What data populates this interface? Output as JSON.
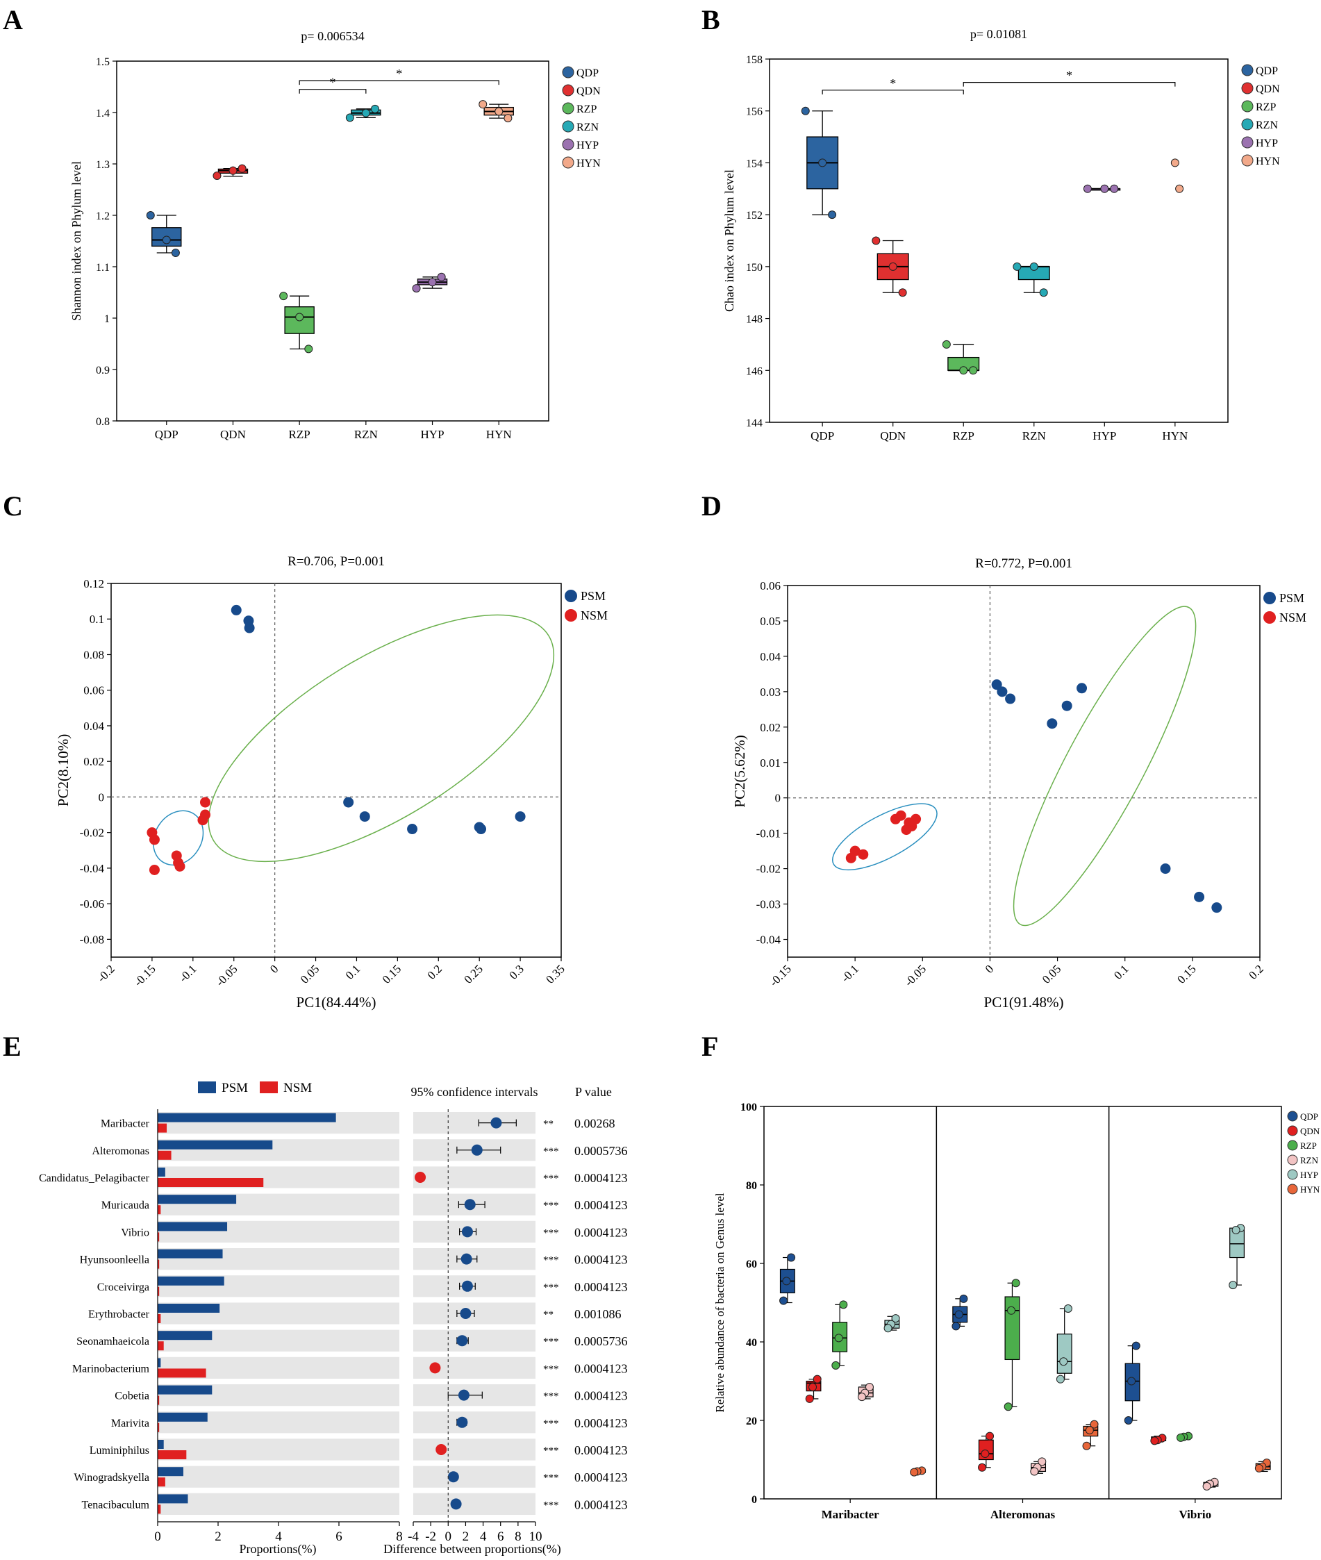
{
  "figure": {
    "panel_labels": [
      "A",
      "B",
      "C",
      "D",
      "E",
      "F"
    ]
  },
  "colors": {
    "QDP": "#2c64a0",
    "QDN": "#e03030",
    "RZP": "#5cb85c",
    "RZN": "#26a9b5",
    "HYP": "#9b72b0",
    "HYN": "#f2a98a",
    "PSM": "#174a8b",
    "NSM": "#e02020",
    "ellipse": "#6ab04c",
    "F_QDP": "#1d4f91",
    "F_QDN": "#e02020",
    "F_RZP": "#4cae4c",
    "F_RZN": "#f2c4c4",
    "F_HYP": "#9ec9c3",
    "F_HYN": "#e8663a",
    "E_bg": "#e6e6e6"
  },
  "chart_data": [
    {
      "id": "A",
      "type": "box",
      "title": "p= 0.006534",
      "ylabel": "Shannon index on Phylum level",
      "ylim": [
        0.8,
        1.5
      ],
      "yticks": [
        0.8,
        0.9,
        1,
        1.1,
        1.2,
        1.3,
        1.4,
        1.5
      ],
      "ytick_labels": [
        "0.8",
        "0.9",
        "1",
        "1.1",
        "1.2",
        "1.3",
        "1.4",
        "1.5"
      ],
      "categories": [
        "QDP",
        "QDN",
        "RZP",
        "RZN",
        "HYP",
        "HYN"
      ],
      "legend": [
        "QDP",
        "QDN",
        "RZP",
        "RZN",
        "HYP",
        "HYN"
      ],
      "boxes": [
        {
          "q1": 1.14,
          "median": 1.152,
          "q3": 1.176,
          "lo": 1.127,
          "hi": 1.2,
          "points": [
            1.2,
            1.152,
            1.127
          ]
        },
        {
          "q1": 1.282,
          "median": 1.287,
          "q3": 1.29,
          "lo": 1.276,
          "hi": 1.291,
          "points": [
            1.277,
            1.287,
            1.291
          ]
        },
        {
          "q1": 0.97,
          "median": 1.002,
          "q3": 1.022,
          "lo": 0.94,
          "hi": 1.043,
          "points": [
            1.043,
            1.002,
            0.94
          ]
        },
        {
          "q1": 1.395,
          "median": 1.399,
          "q3": 1.405,
          "lo": 1.39,
          "hi": 1.407,
          "points": [
            1.39,
            1.399,
            1.407
          ]
        },
        {
          "q1": 1.065,
          "median": 1.07,
          "q3": 1.076,
          "lo": 1.058,
          "hi": 1.08,
          "points": [
            1.058,
            1.07,
            1.08
          ]
        },
        {
          "q1": 1.395,
          "median": 1.402,
          "q3": 1.41,
          "lo": 1.389,
          "hi": 1.416,
          "points": [
            1.416,
            1.402,
            1.389
          ]
        }
      ],
      "sig_brackets": [
        {
          "from": 2,
          "to": 3,
          "y": 1.445,
          "label": "*"
        },
        {
          "from": 2,
          "to": 5,
          "y": 1.462,
          "label": "*"
        }
      ]
    },
    {
      "id": "B",
      "type": "box",
      "title": "p= 0.01081",
      "ylabel": "Chao index on Phylum level",
      "ylim": [
        144,
        158
      ],
      "yticks": [
        144,
        146,
        148,
        150,
        152,
        154,
        156,
        158
      ],
      "ytick_labels": [
        "144",
        "146",
        "148",
        "150",
        "152",
        "154",
        "156",
        "158"
      ],
      "categories": [
        "QDP",
        "QDN",
        "RZP",
        "RZN",
        "HYP",
        "HYN"
      ],
      "legend": [
        "QDP",
        "QDN",
        "RZP",
        "RZN",
        "HYP",
        "HYN"
      ],
      "boxes": [
        {
          "q1": 153,
          "median": 154,
          "q3": 155,
          "lo": 152,
          "hi": 156,
          "points": [
            156,
            154,
            152
          ]
        },
        {
          "q1": 149.5,
          "median": 150,
          "q3": 150.5,
          "lo": 149,
          "hi": 151,
          "points": [
            151,
            150,
            149
          ]
        },
        {
          "q1": 146,
          "median": 146,
          "q3": 146.5,
          "lo": 146,
          "hi": 147,
          "points": [
            147,
            146,
            146
          ]
        },
        {
          "q1": 149.5,
          "median": 150,
          "q3": 150,
          "lo": 149,
          "hi": 150,
          "points": [
            150,
            150,
            149
          ]
        },
        {
          "q1": 153,
          "median": 153,
          "q3": 153,
          "lo": 153,
          "hi": 153,
          "points": [
            153,
            153,
            153
          ]
        },
        {
          "q1": null,
          "median": null,
          "q3": null,
          "lo": null,
          "hi": null,
          "points": [
            154,
            153
          ]
        }
      ],
      "sig_brackets": [
        {
          "from": 0,
          "to": 2,
          "y": 156.8,
          "label": "*"
        },
        {
          "from": 2,
          "to": 5,
          "y": 157.1,
          "label": "*"
        }
      ]
    },
    {
      "id": "C",
      "type": "scatter",
      "title": "R=0.706, P=0.001",
      "xlabel": "PC1(84.44%)",
      "ylabel": "PC2(8.10%)",
      "xlim": [
        -0.2,
        0.35
      ],
      "ylim": [
        -0.09,
        0.12
      ],
      "xticks": [
        -0.2,
        -0.15,
        -0.1,
        -0.05,
        0,
        0.05,
        0.1,
        0.15,
        0.2,
        0.25,
        0.3,
        0.35
      ],
      "xtick_labels": [
        "-0.2",
        "-0.15",
        "-0.1",
        "-0.05",
        "0",
        "0.05",
        "0.1",
        "0.15",
        "0.2",
        "0.25",
        "0.3",
        "0.35"
      ],
      "yticks": [
        -0.08,
        -0.06,
        -0.04,
        -0.02,
        0,
        0.02,
        0.04,
        0.06,
        0.08,
        0.1,
        0.12
      ],
      "ytick_labels": [
        "-0.08",
        "-0.06",
        "-0.04",
        "-0.02",
        "0",
        "0.02",
        "0.04",
        "0.06",
        "0.08",
        "0.1",
        "0.12"
      ],
      "legend": [
        "PSM",
        "NSM"
      ],
      "series": [
        {
          "name": "PSM",
          "points": [
            [
              -0.047,
              0.105
            ],
            [
              -0.032,
              0.099
            ],
            [
              -0.031,
              0.095
            ],
            [
              0.09,
              -0.003
            ],
            [
              0.11,
              -0.011
            ],
            [
              0.168,
              -0.018
            ],
            [
              0.25,
              -0.017
            ],
            [
              0.252,
              -0.018
            ],
            [
              0.3,
              -0.011
            ]
          ]
        },
        {
          "name": "NSM",
          "points": [
            [
              -0.085,
              -0.003
            ],
            [
              -0.085,
              -0.01
            ],
            [
              -0.088,
              -0.013
            ],
            [
              -0.15,
              -0.02
            ],
            [
              -0.147,
              -0.024
            ],
            [
              -0.147,
              -0.041
            ],
            [
              -0.12,
              -0.033
            ],
            [
              -0.118,
              -0.037
            ],
            [
              -0.116,
              -0.039
            ]
          ]
        }
      ],
      "ellipses": [
        {
          "group": "PSM",
          "cx": 0.13,
          "cy": 0.033,
          "rx": 0.24,
          "ry": 0.045,
          "angle_deg": -31.5
        },
        {
          "group": "NSM",
          "cx": -0.118,
          "cy": -0.023,
          "rx": 0.035,
          "ry": 0.013,
          "angle_deg": -57
        }
      ]
    },
    {
      "id": "D",
      "type": "scatter",
      "title": "R=0.772, P=0.001",
      "xlabel": "PC1(91.48%)",
      "ylabel": "PC2(5.62%)",
      "xlim": [
        -0.15,
        0.2
      ],
      "ylim": [
        -0.045,
        0.06
      ],
      "xticks": [
        -0.15,
        -0.1,
        -0.05,
        0,
        0.05,
        0.1,
        0.15,
        0.2
      ],
      "xtick_labels": [
        "-0.15",
        "-0.1",
        "-0.05",
        "0",
        "0.05",
        "0.1",
        "0.15",
        "0.2"
      ],
      "yticks": [
        -0.04,
        -0.03,
        -0.02,
        -0.01,
        0,
        0.01,
        0.02,
        0.03,
        0.04,
        0.05,
        0.06
      ],
      "ytick_labels": [
        "-0.04",
        "-0.03",
        "-0.02",
        "-0.01",
        "0",
        "0.01",
        "0.02",
        "0.03",
        "0.04",
        "0.05",
        "0.06"
      ],
      "legend": [
        "PSM",
        "NSM"
      ],
      "series": [
        {
          "name": "PSM",
          "points": [
            [
              0.005,
              0.032
            ],
            [
              0.009,
              0.03
            ],
            [
              0.015,
              0.028
            ],
            [
              0.046,
              0.021
            ],
            [
              0.057,
              0.026
            ],
            [
              0.068,
              0.031
            ],
            [
              0.13,
              -0.02
            ],
            [
              0.155,
              -0.028
            ],
            [
              0.168,
              -0.031
            ]
          ]
        },
        {
          "name": "NSM",
          "points": [
            [
              -0.07,
              -0.006
            ],
            [
              -0.066,
              -0.005
            ],
            [
              -0.06,
              -0.007
            ],
            [
              -0.058,
              -0.008
            ],
            [
              -0.055,
              -0.006
            ],
            [
              -0.062,
              -0.009
            ],
            [
              -0.1,
              -0.015
            ],
            [
              -0.094,
              -0.016
            ],
            [
              -0.103,
              -0.017
            ]
          ]
        }
      ],
      "ellipses": [
        {
          "group": "PSM",
          "cx": 0.085,
          "cy": 0.009,
          "rx": 0.133,
          "ry": 0.011,
          "angle_deg": -62
        },
        {
          "group": "NSM",
          "cx": -0.078,
          "cy": -0.011,
          "rx": 0.043,
          "ry": 0.006,
          "angle_deg": -28
        }
      ]
    },
    {
      "id": "E",
      "type": "bar_ci",
      "legend": [
        "PSM",
        "NSM"
      ],
      "ci_title": "95% confidence intervals",
      "pvalue_title": "P value",
      "xlabel_left": "Proportions(%)",
      "xlabel_right": "Difference between proportions(%)",
      "left_xlim": [
        0,
        8
      ],
      "left_xticks": [
        0,
        2,
        4,
        6,
        8
      ],
      "left_xtick_labels": [
        "0",
        "2",
        "4",
        "6",
        "8"
      ],
      "right_xlim": [
        -4,
        10
      ],
      "right_xticks": [
        -4,
        -2,
        0,
        2,
        4,
        6,
        8,
        10
      ],
      "right_xtick_labels": [
        "-4",
        "-2",
        "0",
        "2",
        "4",
        "6",
        "8",
        "10"
      ],
      "categories": [
        "Maribacter",
        "Alteromonas",
        "Candidatus_Pelagibacter",
        "Muricauda",
        "Vibrio",
        "Hyunsoonleella",
        "Croceivirga",
        "Erythrobacter",
        "Seonamhaeicola",
        "Marinobacterium",
        "Cobetia",
        "Marivita",
        "Luminiphilus",
        "Winogradskyella",
        "Tenacibaculum"
      ],
      "series": [
        {
          "name": "PSM",
          "values": [
            5.9,
            3.8,
            0.25,
            2.6,
            2.3,
            2.15,
            2.2,
            2.05,
            1.8,
            0.1,
            1.8,
            1.65,
            0.2,
            0.85,
            1.0
          ]
        },
        {
          "name": "NSM",
          "values": [
            0.3,
            0.45,
            3.5,
            0.1,
            0.05,
            0.05,
            0.05,
            0.1,
            0.2,
            1.6,
            0.05,
            0.05,
            0.95,
            0.25,
            0.1
          ]
        }
      ],
      "diff": [
        5.5,
        3.3,
        -3.2,
        2.5,
        2.2,
        2.1,
        2.2,
        2.0,
        1.6,
        -1.5,
        1.8,
        1.6,
        -0.8,
        0.6,
        0.9
      ],
      "ci_low": [
        3.5,
        1.0,
        -3.6,
        1.2,
        1.3,
        1.0,
        1.3,
        1.0,
        1.0,
        -1.8,
        0.0,
        1.0,
        -1.0,
        0.4,
        0.5
      ],
      "ci_high": [
        7.8,
        6.0,
        -2.8,
        4.2,
        3.2,
        3.3,
        3.1,
        3.0,
        2.3,
        -1.2,
        3.9,
        2.1,
        -0.6,
        0.8,
        1.2
      ],
      "stars": [
        "**",
        "***",
        "***",
        "***",
        "***",
        "***",
        "***",
        "**",
        "***",
        "***",
        "***",
        "***",
        "***",
        "***",
        "***"
      ],
      "pvalues": [
        "0.00268",
        "0.0005736",
        "0.0004123",
        "0.0004123",
        "0.0004123",
        "0.0004123",
        "0.0004123",
        "0.001086",
        "0.0005736",
        "0.0004123",
        "0.0004123",
        "0.0004123",
        "0.0004123",
        "0.0004123",
        "0.0004123"
      ]
    },
    {
      "id": "F",
      "type": "grouped_box",
      "ylabel": "Relative abundance of bacteria on Genus level",
      "ylim": [
        0,
        100
      ],
      "yticks": [
        0,
        20,
        40,
        60,
        80,
        100
      ],
      "ytick_labels": [
        "0",
        "20",
        "40",
        "60",
        "80",
        "100"
      ],
      "groups": [
        "Maribacter",
        "Alteromonas",
        "Vibrio"
      ],
      "legend": [
        "QDP",
        "QDN",
        "RZP",
        "RZN",
        "HYP",
        "HYN"
      ],
      "boxes": [
        [
          {
            "q1": 52.5,
            "median": 55.5,
            "q3": 58.5,
            "lo": 50,
            "hi": 61.5,
            "points": [
              61.5,
              55.5,
              50.5
            ]
          },
          {
            "q1": 27.5,
            "median": 29.5,
            "q3": 30,
            "lo": 25.5,
            "hi": 30.5,
            "points": [
              30.5,
              28.5,
              25.5
            ]
          },
          {
            "q1": 37.5,
            "median": 41,
            "q3": 45,
            "lo": 34,
            "hi": 49.5,
            "points": [
              49.5,
              41,
              34
            ]
          },
          {
            "q1": 26,
            "median": 27,
            "q3": 28.5,
            "lo": 25.5,
            "hi": 29,
            "points": [
              28.5,
              27,
              26
            ]
          },
          {
            "q1": 43.5,
            "median": 44.5,
            "q3": 45.5,
            "lo": 43,
            "hi": 46.5,
            "points": [
              46,
              44.5,
              43.5
            ]
          },
          {
            "q1": 6.7,
            "median": 7,
            "q3": 7.2,
            "lo": 6.6,
            "hi": 7.3,
            "points": [
              7.2,
              7,
              6.8
            ]
          }
        ],
        [
          {
            "q1": 45,
            "median": 47,
            "q3": 49,
            "lo": 44,
            "hi": 51,
            "points": [
              51,
              47,
              44
            ]
          },
          {
            "q1": 10,
            "median": 11.5,
            "q3": 15,
            "lo": 8,
            "hi": 16,
            "points": [
              16,
              11.5,
              8
            ]
          },
          {
            "q1": 35.5,
            "median": 48,
            "q3": 51.5,
            "lo": 23.5,
            "hi": 55,
            "points": [
              55,
              48,
              23.5
            ]
          },
          {
            "q1": 7,
            "median": 8,
            "q3": 9,
            "lo": 6.5,
            "hi": 9.5,
            "points": [
              9.5,
              8,
              7
            ]
          },
          {
            "q1": 32,
            "median": 35,
            "q3": 42,
            "lo": 30.5,
            "hi": 48.5,
            "points": [
              48.5,
              35,
              30.5
            ]
          },
          {
            "q1": 16,
            "median": 17.5,
            "q3": 18.5,
            "lo": 13.5,
            "hi": 19,
            "points": [
              19,
              17.5,
              13.5
            ]
          }
        ],
        [
          {
            "q1": 25,
            "median": 30,
            "q3": 34.5,
            "lo": 20,
            "hi": 39,
            "points": [
              39,
              30,
              20
            ]
          },
          {
            "q1": 14.8,
            "median": 15.2,
            "q3": 15.8,
            "lo": 14.5,
            "hi": 16,
            "points": [
              15.5,
              15,
              14.8
            ]
          },
          {
            "q1": 15.6,
            "median": 15.8,
            "q3": 16,
            "lo": 15.4,
            "hi": 16.2,
            "points": [
              16,
              15.8,
              15.6
            ]
          },
          {
            "q1": 3.2,
            "median": 3.8,
            "q3": 4.2,
            "lo": 3,
            "hi": 4.5,
            "points": [
              4.3,
              3.8,
              3.2
            ]
          },
          {
            "q1": 61.5,
            "median": 65,
            "q3": 69,
            "lo": 54.5,
            "hi": 69,
            "points": [
              69,
              68.5,
              54.5
            ]
          },
          {
            "q1": 7.5,
            "median": 8.2,
            "q3": 9,
            "lo": 7,
            "hi": 9.5,
            "points": [
              9.2,
              8.2,
              7.8
            ]
          }
        ]
      ]
    }
  ]
}
